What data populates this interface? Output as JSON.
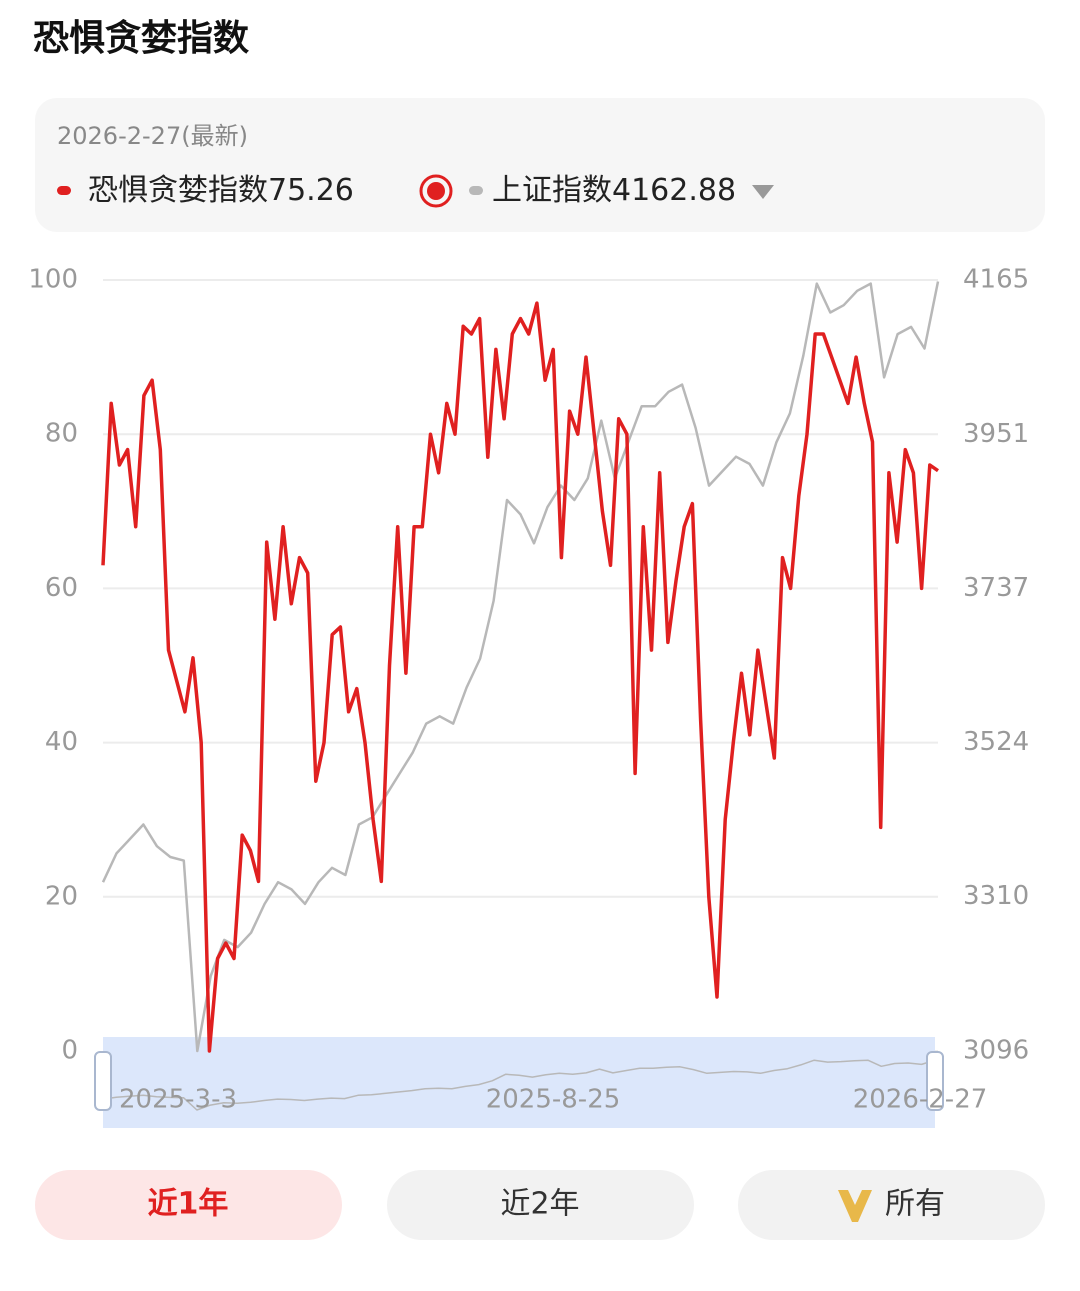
{
  "header": {
    "title": "恐惧贪婪指数"
  },
  "chart_data": {
    "type": "line",
    "date_label": "2026-2-27(最新)",
    "ylim": [
      0,
      100
    ],
    "yticks": [
      0,
      20,
      40,
      60,
      80,
      100
    ],
    "y2lim": [
      3096,
      4165
    ],
    "y2ticks": [
      3096,
      3310,
      3524,
      3737,
      3951,
      4165
    ],
    "grid": true,
    "navigator_labels": [
      "2025-3-3",
      "2025-8-25",
      "2026-2-27"
    ],
    "series": [
      {
        "name": "恐惧贪婪指数",
        "latest_value": 75.26,
        "color": "#e02020",
        "values": [
          63,
          84,
          76,
          78,
          68,
          85,
          87,
          78,
          52,
          48,
          44,
          51,
          40,
          0,
          12,
          14,
          12,
          28,
          26,
          22,
          66,
          56,
          68,
          58,
          64,
          62,
          35,
          40,
          54,
          55,
          44,
          47,
          40,
          30,
          22,
          50,
          68,
          49,
          68,
          68,
          80,
          75,
          84,
          80,
          94,
          93,
          95,
          77,
          91,
          82,
          93,
          95,
          93,
          97,
          87,
          91,
          64,
          83,
          80,
          90,
          80,
          70,
          63,
          82,
          80,
          36,
          68,
          52,
          75,
          53,
          61,
          68,
          71,
          43,
          20,
          7,
          30,
          40,
          49,
          41,
          52,
          45,
          38,
          64,
          60,
          72,
          80,
          93,
          93,
          90,
          87,
          84,
          90,
          84,
          79,
          29,
          75,
          66,
          78,
          75,
          60,
          76,
          75.26
        ]
      },
      {
        "name": "上证指数",
        "latest_value": 4162.88,
        "axis": "y2",
        "color": "#b8b8b8",
        "values": [
          3330,
          3370,
          3390,
          3410,
          3380,
          3365,
          3360,
          3096,
          3200,
          3250,
          3240,
          3260,
          3300,
          3330,
          3320,
          3300,
          3330,
          3350,
          3340,
          3410,
          3420,
          3450,
          3480,
          3510,
          3550,
          3560,
          3550,
          3600,
          3640,
          3720,
          3860,
          3840,
          3800,
          3850,
          3880,
          3860,
          3890,
          3970,
          3890,
          3940,
          3990,
          3990,
          4010,
          4020,
          3960,
          3880,
          3900,
          3920,
          3910,
          3880,
          3940,
          3980,
          4060,
          4160,
          4120,
          4130,
          4150,
          4160,
          4030,
          4090,
          4100,
          4070,
          4162.88
        ]
      }
    ]
  },
  "buttons": [
    "近1年",
    "近2年",
    "所有"
  ]
}
